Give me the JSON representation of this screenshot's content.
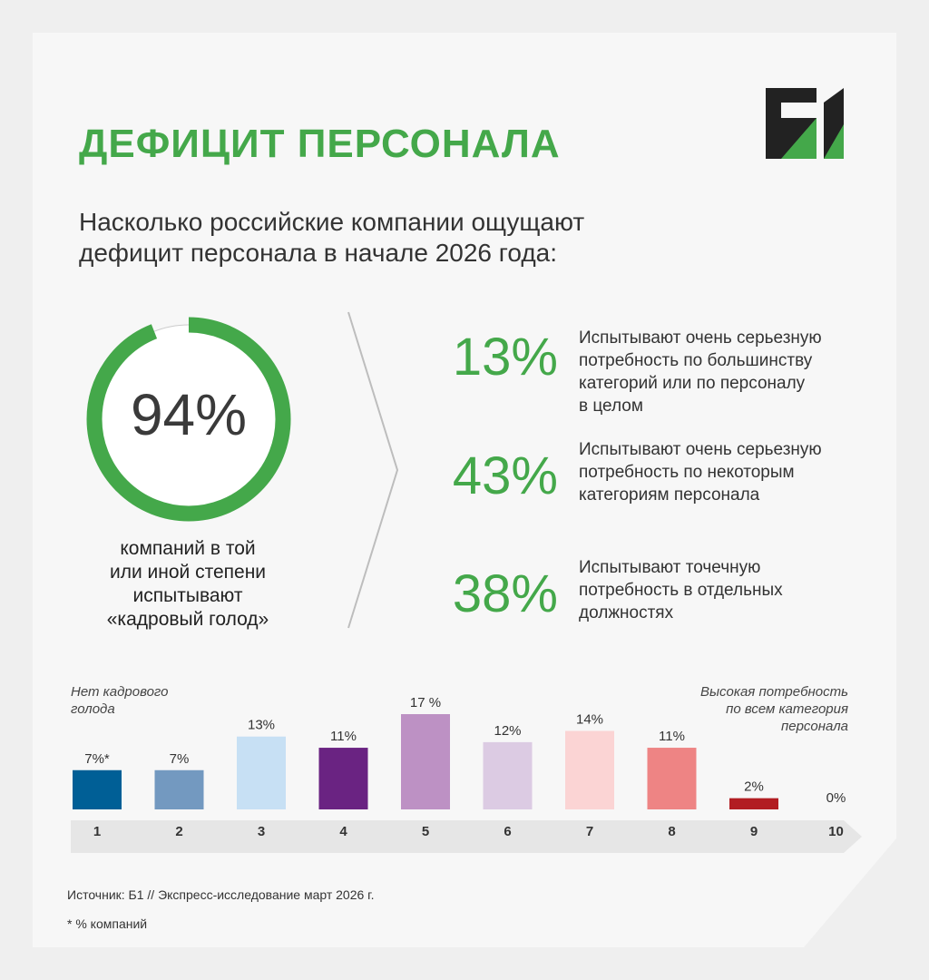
{
  "header": {
    "title": "ДЕФИЦИТ ПЕРСОНАЛА",
    "subtitle_line1": "Насколько российские компании ощущают",
    "subtitle_line2": "дефицит персонала в начале 2026 года:",
    "logo_text": "Б1"
  },
  "summary": {
    "total_value": "94%",
    "total_fraction": 0.94,
    "caption_line1": "компаний в той",
    "caption_line2": "или иной степени",
    "caption_line3": "испытывают",
    "caption_line4": "«кадровый голод»"
  },
  "breakdown": [
    {
      "value": "13%",
      "line1": "Испытывают очень серьезную",
      "line2": "потребность по большинству",
      "line3": "категорий или по персоналу",
      "line4": "в целом"
    },
    {
      "value": "43%",
      "line1": "Испытывают очень серьезную",
      "line2": "потребность по некоторым",
      "line3": "категориям персонала",
      "line4": ""
    },
    {
      "value": "38%",
      "line1": "Испытывают точечную",
      "line2": "потребность в отдельных",
      "line3": "должностях",
      "line4": ""
    }
  ],
  "scale_notes": {
    "left_line1": "Нет кадрового",
    "left_line2": "голода",
    "right_line1": "Высокая потребность",
    "right_line2": "по всем категория",
    "right_line3": "персонала"
  },
  "colors": {
    "accent": "#44a84a",
    "bars": [
      "#005f96",
      "#7399c0",
      "#c7e0f4",
      "#6a2382",
      "#bd91c4",
      "#dccbe3",
      "#fbd4d4",
      "#ee8484",
      "#b21d22",
      "#b21d22"
    ]
  },
  "chart_data": {
    "type": "bar",
    "categories": [
      "1",
      "2",
      "3",
      "4",
      "5",
      "6",
      "7",
      "8",
      "9",
      "10"
    ],
    "values": [
      7,
      7,
      13,
      11,
      17,
      12,
      14,
      11,
      2,
      0
    ],
    "labels": [
      "7%*",
      "7%",
      "13%",
      "11%",
      "17 %",
      "12%",
      "14%",
      "11%",
      "2%",
      "0%"
    ],
    "ylim": [
      0,
      17
    ]
  },
  "footer": {
    "source": "Источник: Б1 // Экспресс-исследование март 2026 г.",
    "footnote": "* % компаний"
  }
}
